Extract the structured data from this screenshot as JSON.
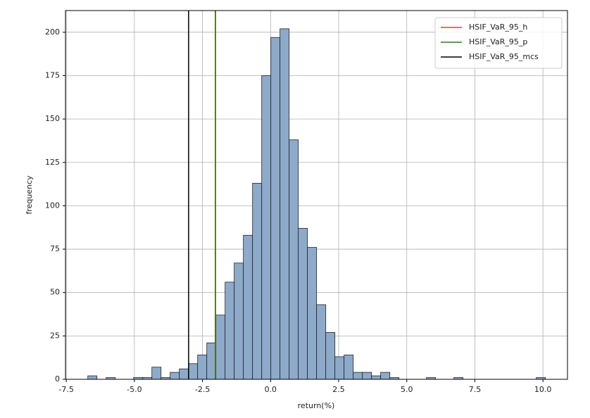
{
  "chart_data": {
    "type": "histogram",
    "x_label": "return(%)",
    "y_label": "frequency",
    "bins": [
      -6.71,
      -6.374,
      -6.038,
      -5.702,
      -5.366,
      -5.03,
      -4.694,
      -4.358,
      -4.022,
      -3.686,
      -3.35,
      -3.014,
      -2.678,
      -2.342,
      -2.006,
      -1.67,
      -1.334,
      -0.998,
      -0.662,
      -0.326,
      0.01,
      0.346,
      0.682,
      1.018,
      1.354,
      1.69,
      2.026,
      2.362,
      2.698,
      3.034,
      3.37,
      3.706,
      4.042,
      4.378,
      4.714,
      5.05,
      5.386,
      5.722,
      6.058,
      6.394,
      6.73,
      7.066,
      7.402,
      7.738,
      8.074,
      8.41,
      8.746,
      9.082,
      9.418,
      9.754,
      10.09
    ],
    "values": [
      2,
      0,
      1,
      0,
      0,
      1,
      1,
      7,
      1,
      4,
      6,
      9,
      14,
      21,
      37,
      56,
      67,
      83,
      113,
      175,
      197,
      202,
      138,
      87,
      76,
      43,
      27,
      13,
      14,
      4,
      4,
      2,
      4,
      1,
      0,
      0,
      0,
      1,
      0,
      0,
      1,
      0,
      0,
      0,
      0,
      0,
      0,
      0,
      0,
      1
    ],
    "color": "#8eaacb",
    "edge_color": "#222222",
    "vlines": [
      {
        "name": "HSIF_VaR_95_h",
        "color": "#e8401c",
        "value": -2.02
      },
      {
        "name": "HSIF_VaR_95_p",
        "color": "#2e7d1e",
        "value": -2.03
      },
      {
        "name": "HSIF_VaR_95_mcs",
        "color": "#000000",
        "value": -3.01
      }
    ],
    "xlim": [
      -7.53,
      10.9
    ],
    "ylim": [
      0,
      212.5
    ],
    "xticks": [
      -7.5,
      {
        "value": -5,
        "label": "-5.0"
      },
      -2.5,
      {
        "value": 0,
        "label": "0.0"
      },
      2.5,
      {
        "value": 5,
        "label": "5.0"
      },
      7.5,
      {
        "value": 10,
        "label": "10.0"
      }
    ],
    "yticks": [
      0,
      25,
      50,
      75,
      100,
      125,
      150,
      175,
      200
    ],
    "grid": true,
    "legend": "upper-right"
  }
}
